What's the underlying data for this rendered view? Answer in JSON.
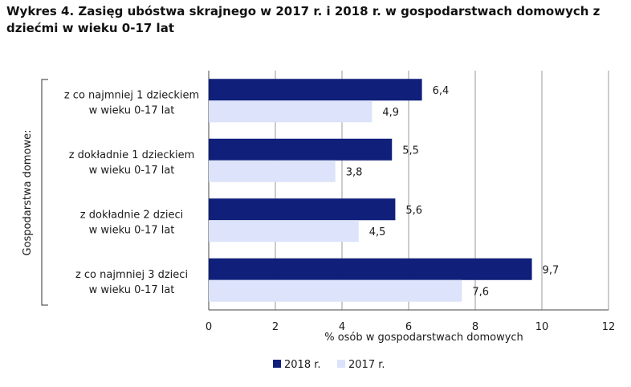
{
  "chart_data": {
    "type": "bar",
    "orientation": "horizontal",
    "title": "Wykres 4. Zasięg ubóstwa skrajnego w 2017 r. i 2018 r. w gospodarstwach domowych z dziećmi w wieku 0-17 lat",
    "ylabel": "Gospodarstwa domowe:",
    "xlabel": "% osób w gospodarstwach domowych",
    "categories": [
      [
        "z co najmniej 1 dzieckiem",
        "w wieku 0-17 lat"
      ],
      [
        "z dokładnie 1 dzieckiem",
        "w wieku 0-17 lat"
      ],
      [
        "z dokładnie 2 dzieci",
        "w wieku 0-17 lat"
      ],
      [
        "z co najmniej 3 dzieci",
        "w wieku 0-17 lat"
      ]
    ],
    "series": [
      {
        "name": "2018 r.",
        "color": "#0f1f7a",
        "values": [
          6.4,
          5.5,
          5.6,
          9.7
        ],
        "labels": [
          "6,4",
          "5,5",
          "5,6",
          "9,7"
        ]
      },
      {
        "name": "2017 r.",
        "color": "#dce3fa",
        "values": [
          4.9,
          3.8,
          4.5,
          7.6
        ],
        "labels": [
          "4,9",
          "3,8",
          "4,5",
          "7,6"
        ]
      }
    ],
    "xlim": [
      0,
      12
    ],
    "xticks": [
      0,
      2,
      4,
      6,
      8,
      10,
      12
    ],
    "xtick_labels": [
      "0",
      "2",
      "4",
      "6",
      "8",
      "10",
      "12"
    ],
    "grid": true,
    "legend_position": "bottom-center"
  }
}
